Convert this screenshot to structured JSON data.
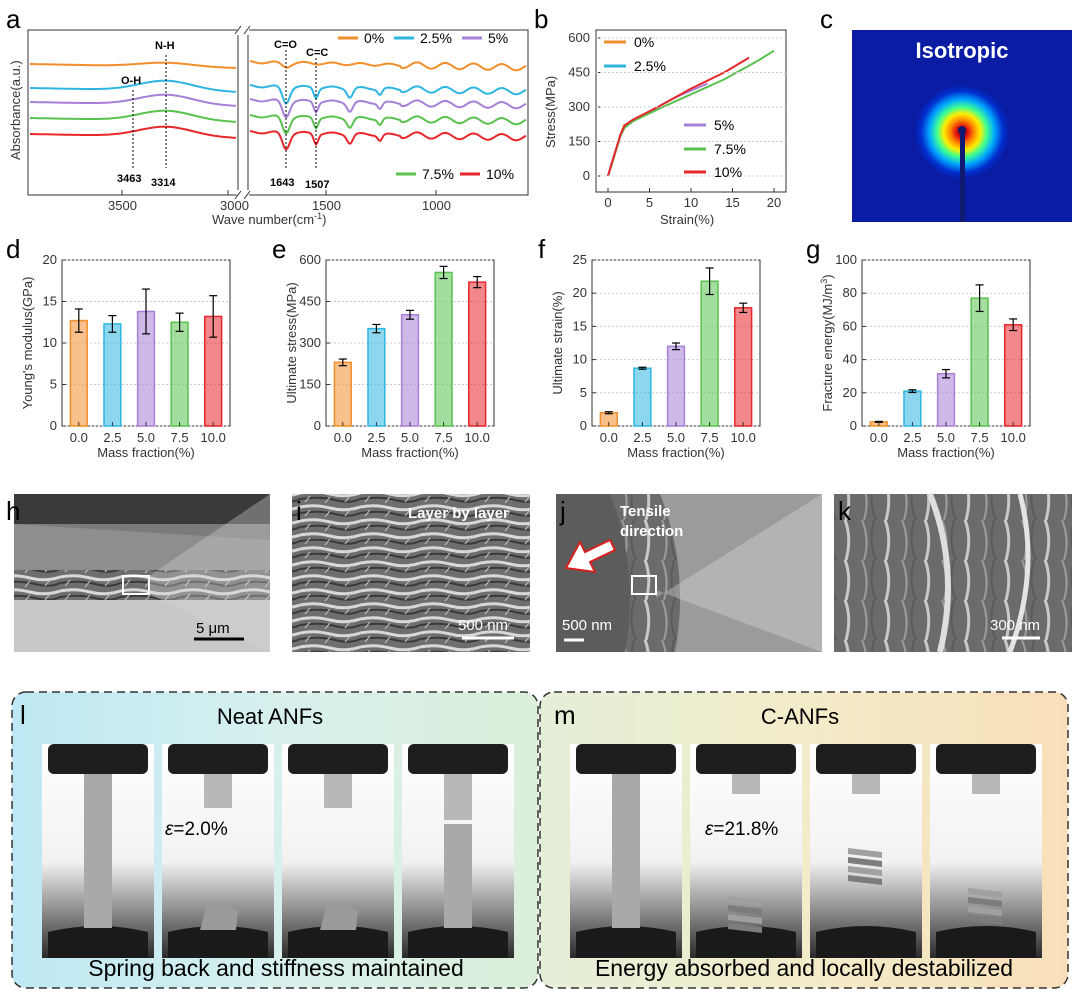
{
  "panels": {
    "a": "a",
    "b": "b",
    "c": "c",
    "d": "d",
    "e": "e",
    "f": "f",
    "g": "g",
    "h": "h",
    "i": "i",
    "j": "j",
    "k": "k",
    "l": "l",
    "m": "m"
  },
  "colors": {
    "c0": "#f28e2b",
    "c25": "#2eb5e0",
    "c5": "#a67fd6",
    "c75": "#59c24f",
    "c10": "#e8272b"
  },
  "ftir": {
    "ylabel": "Absorbance(a.u.)",
    "xlabel_main": "Wave number(cm",
    "xlabel_sup": "-1",
    "xlabel_end": ")",
    "xticks": [
      "3500",
      "3000",
      "1500",
      "1000"
    ],
    "peaks": {
      "oh": "O-H",
      "nh": "N-H",
      "co": "C=O",
      "cc": "C=C"
    },
    "peak_values": {
      "v3463": "3463",
      "v3314": "3314",
      "v1643": "1643",
      "v1507": "1507"
    },
    "legend": {
      "l0": "0%",
      "l25": "2.5%",
      "l5": "5%",
      "l75": "7.5%",
      "l10": "10%"
    }
  },
  "stress_strain": {
    "ylabel": "Stress(MPa)",
    "xlabel": "Strain(%)",
    "xticks": [
      "0",
      "5",
      "10",
      "15",
      "20"
    ],
    "yticks": [
      "0",
      "150",
      "300",
      "450",
      "600"
    ],
    "legend": {
      "l0": "0%",
      "l25": "2.5%",
      "l5": "5%",
      "l75": "7.5%",
      "l10": "10%"
    }
  },
  "saxs": {
    "label": "Isotropic"
  },
  "chart_data": [
    {
      "type": "bar",
      "panel": "d",
      "categories": [
        "0.0",
        "2.5",
        "5.0",
        "7.5",
        "10.0"
      ],
      "values": [
        12.7,
        12.3,
        13.8,
        12.5,
        13.2
      ],
      "errors": [
        1.4,
        1.0,
        2.7,
        1.1,
        2.5
      ],
      "ylabel": "Young's modulus(GPa)",
      "xlabel": "Mass fraction(%)",
      "ylim": [
        0,
        20
      ],
      "yticks": [
        "0",
        "5",
        "10",
        "15",
        "20"
      ]
    },
    {
      "type": "bar",
      "panel": "e",
      "categories": [
        "0.0",
        "2.5",
        "5.0",
        "7.5",
        "10.0"
      ],
      "values": [
        230,
        352,
        402,
        555,
        520
      ],
      "errors": [
        12,
        15,
        16,
        22,
        20
      ],
      "ylabel": "Ultimate stress(MPa)",
      "xlabel": "Mass fraction(%)",
      "ylim": [
        0,
        600
      ],
      "yticks": [
        "0",
        "150",
        "300",
        "450",
        "600"
      ]
    },
    {
      "type": "bar",
      "panel": "f",
      "categories": [
        "0.0",
        "2.5",
        "5.0",
        "7.5",
        "10.0"
      ],
      "values": [
        2.0,
        8.7,
        12.0,
        21.8,
        17.8
      ],
      "errors": [
        0.15,
        0.15,
        0.5,
        2.0,
        0.7
      ],
      "ylabel": "Ultimate strain(%)",
      "xlabel": "Mass fraction(%)",
      "ylim": [
        0,
        25
      ],
      "yticks": [
        "0",
        "5",
        "10",
        "15",
        "20",
        "25"
      ]
    },
    {
      "type": "bar",
      "panel": "g",
      "categories": [
        "0.0",
        "2.5",
        "5.0",
        "7.5",
        "10.0"
      ],
      "values": [
        2.5,
        21,
        31.5,
        77,
        61
      ],
      "errors": [
        0.3,
        0.8,
        2.5,
        8,
        3.5
      ],
      "ylabel": "Fracture energy(MJ/m",
      "ylabel_sup": "3",
      "ylabel_end": ")",
      "xlabel": "Mass fraction(%)",
      "ylim": [
        0,
        100
      ],
      "yticks": [
        "0",
        "20",
        "40",
        "60",
        "80",
        "100"
      ]
    },
    {
      "type": "line",
      "panel": "b",
      "xlim": [
        0,
        20
      ],
      "ylim": [
        0,
        600
      ],
      "series": [
        {
          "name": "0%",
          "x": [
            0,
            0.5,
            1.0,
            1.5,
            2.0
          ],
          "y": [
            0,
            60,
            120,
            180,
            225
          ]
        },
        {
          "name": "2.5%",
          "x": [
            0,
            0.5,
            1,
            1.5,
            2,
            3,
            5,
            7,
            8.7
          ],
          "y": [
            0,
            60,
            120,
            180,
            215,
            240,
            280,
            320,
            352
          ]
        },
        {
          "name": "5%",
          "x": [
            0,
            0.5,
            1,
            1.5,
            2,
            3,
            5,
            8,
            12
          ],
          "y": [
            0,
            60,
            120,
            180,
            215,
            240,
            280,
            340,
            402
          ]
        },
        {
          "name": "7.5%",
          "x": [
            0,
            0.5,
            1,
            1.5,
            2,
            3,
            6,
            10,
            14,
            18,
            20
          ],
          "y": [
            0,
            55,
            115,
            175,
            210,
            238,
            290,
            355,
            420,
            500,
            545
          ]
        },
        {
          "name": "10%",
          "x": [
            0,
            0.5,
            1,
            1.5,
            2,
            3,
            6,
            10,
            14,
            17
          ],
          "y": [
            0,
            60,
            120,
            180,
            220,
            245,
            300,
            380,
            450,
            515
          ]
        }
      ]
    }
  ],
  "sem": {
    "i_label": "Layer by layer",
    "j_label1": "Tensile",
    "j_label2": "direction",
    "h_scale": "5 μm",
    "i_scale": "500 nm",
    "j_scale": "500 nm",
    "k_scale": "300 nm"
  },
  "bottom": {
    "l_title": "Neat ANFs",
    "m_title": "C-ANFs",
    "l_strain_sym": "ε",
    "l_strain_val": "=2.0%",
    "m_strain_sym": "ε",
    "m_strain_val": "=21.8%",
    "l_caption": "Spring back and stiffness maintained",
    "m_caption": "Energy absorbed and locally destabilized"
  }
}
